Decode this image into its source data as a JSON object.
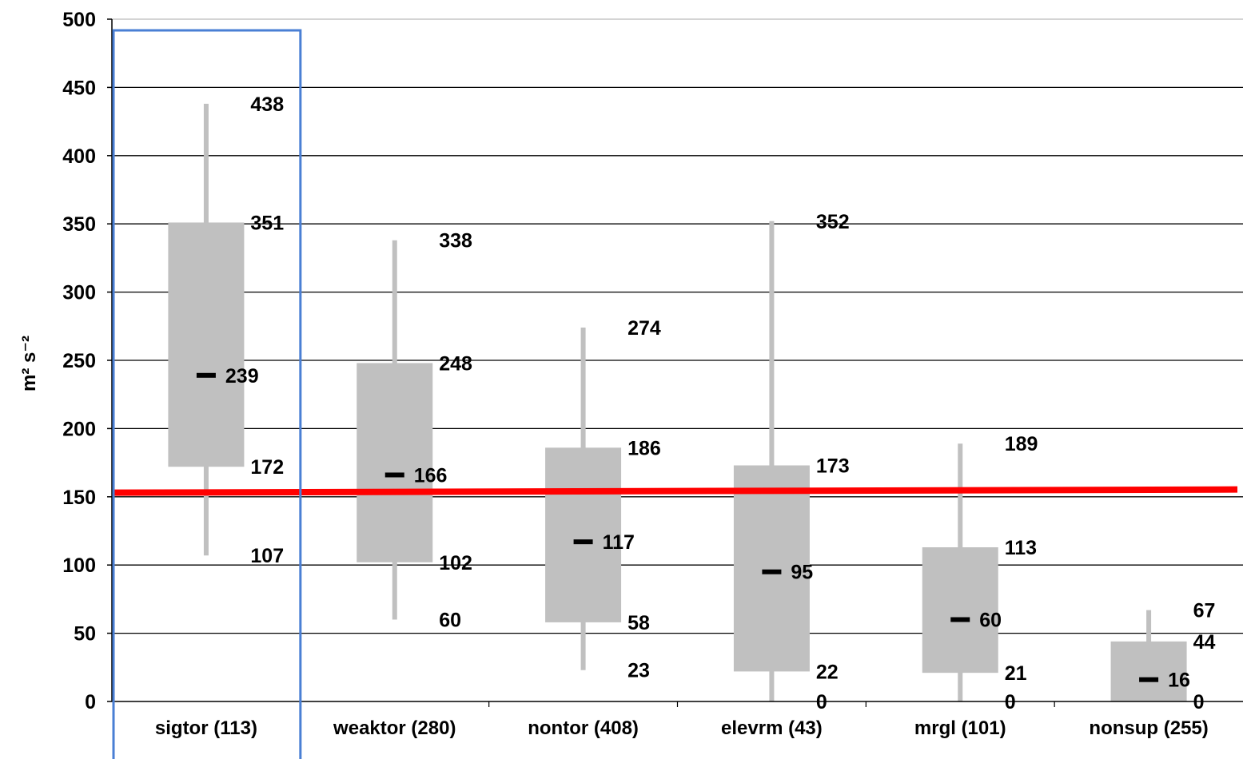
{
  "chart_data": {
    "type": "box",
    "ylabel": "m² s⁻²",
    "ylim": [
      0,
      500
    ],
    "yticks": [
      0,
      50,
      100,
      150,
      200,
      250,
      300,
      350,
      400,
      450,
      500
    ],
    "grid": true,
    "categories": [
      "sigtor (113)",
      "weaktor (280)",
      "nontor (408)",
      "elevrm (43)",
      "mrgl (101)",
      "nonsup (255)"
    ],
    "boxes": [
      {
        "whisker_high": 438,
        "q3": 351,
        "median": 239,
        "q1": 172,
        "whisker_low": 107
      },
      {
        "whisker_high": 338,
        "q3": 248,
        "median": 166,
        "q1": 102,
        "whisker_low": 60
      },
      {
        "whisker_high": 274,
        "q3": 186,
        "median": 117,
        "q1": 58,
        "whisker_low": 23
      },
      {
        "whisker_high": 352,
        "q3": 173,
        "median": 95,
        "q1": 22,
        "whisker_low": 0
      },
      {
        "whisker_high": 189,
        "q3": 113,
        "median": 60,
        "q1": 21,
        "whisker_low": 0
      },
      {
        "whisker_high": 67,
        "q3": 44,
        "median": 16,
        "q1": 0,
        "whisker_low": 0
      }
    ],
    "reference_line": {
      "value": 153,
      "color": "#ff0000"
    },
    "highlight_category": "sigtor (113)",
    "colors": {
      "box": "#c0c0c0",
      "whisker": "#c0c0c0",
      "median": "#000000",
      "grid": "#000000",
      "highlight": "#4a7fd4"
    }
  }
}
